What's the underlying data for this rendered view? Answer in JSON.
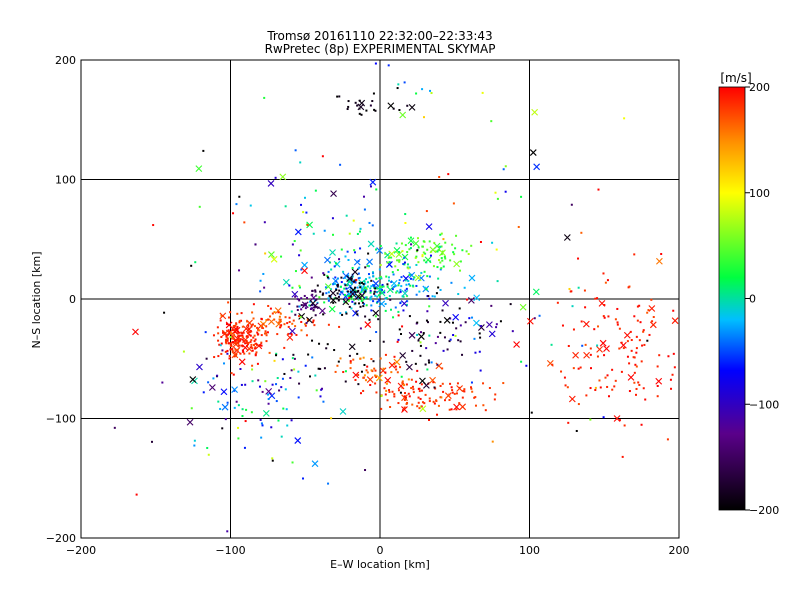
{
  "chart_data": {
    "type": "scatter",
    "title": "Tromsø 20161110 22:32:00–22:33:43",
    "subtitle": "RwPretec (8p) EXPERIMENTAL SKYMAP",
    "xlabel": "E–W location [km]",
    "ylabel": "N–S location [km]",
    "xlim": [
      -200,
      200
    ],
    "ylim": [
      -200,
      200
    ],
    "xticks": [
      "−200",
      "−100",
      "0",
      "100",
      "200"
    ],
    "yticks": [
      "200",
      "100",
      "0",
      "−100",
      "−200"
    ],
    "grid": true,
    "colorbar": {
      "unit": "[m/s]",
      "range": [
        -200,
        200
      ],
      "ticks": [
        "200",
        "100",
        "0",
        "−100",
        "−200"
      ]
    },
    "markers": [
      "dot",
      "x"
    ],
    "clusters": [
      {
        "cx": -5,
        "cy": 10,
        "sx": 22,
        "sy": 10,
        "v": -20,
        "vs": 30,
        "n": 260
      },
      {
        "cx": 30,
        "cy": 38,
        "sx": 15,
        "sy": 8,
        "v": 40,
        "vs": 20,
        "n": 90
      },
      {
        "cx": -95,
        "cy": -35,
        "sx": 8,
        "sy": 9,
        "v": 190,
        "vs": 10,
        "n": 180
      },
      {
        "cx": -70,
        "cy": -20,
        "sx": 15,
        "sy": 8,
        "v": 180,
        "vs": 15,
        "n": 80
      },
      {
        "cx": 35,
        "cy": -80,
        "sx": 20,
        "sy": 8,
        "v": 185,
        "vs": 10,
        "n": 110
      },
      {
        "cx": 0,
        "cy": -60,
        "sx": 15,
        "sy": 8,
        "v": 170,
        "vs": 20,
        "n": 50
      },
      {
        "cx": -50,
        "cy": -5,
        "sx": 5,
        "sy": 6,
        "v": -150,
        "vs": 20,
        "n": 40
      },
      {
        "cx": -20,
        "cy": 5,
        "sx": 10,
        "sy": 10,
        "v": -190,
        "vs": 10,
        "n": 60
      },
      {
        "cx": 10,
        "cy": -45,
        "sx": 30,
        "sy": 15,
        "v": -190,
        "vs": 15,
        "n": 50
      },
      {
        "cx": -5,
        "cy": 160,
        "sx": 12,
        "sy": 5,
        "v": -195,
        "vs": 10,
        "n": 25
      },
      {
        "cx": 160,
        "cy": -40,
        "sx": 25,
        "sy": 30,
        "v": 190,
        "vs": 10,
        "n": 140
      },
      {
        "cx": -80,
        "cy": -80,
        "sx": 25,
        "sy": 25,
        "v": -50,
        "vs": 60,
        "n": 90
      },
      {
        "cx": -30,
        "cy": 50,
        "sx": 40,
        "sy": 30,
        "v": -30,
        "vs": 60,
        "n": 70
      },
      {
        "cx": 50,
        "cy": -20,
        "sx": 25,
        "sy": 15,
        "v": -100,
        "vs": 60,
        "n": 50
      },
      {
        "cx": 20,
        "cy": 180,
        "sx": 20,
        "sy": 15,
        "v": 0,
        "vs": 60,
        "n": 12
      },
      {
        "cx": 0,
        "cy": 0,
        "sx": 110,
        "sy": 90,
        "v": 0,
        "vs": 160,
        "n": 160
      }
    ]
  }
}
